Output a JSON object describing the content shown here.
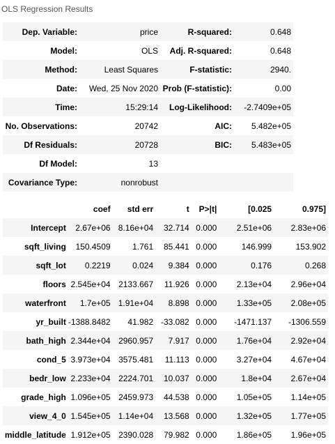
{
  "caption": "OLS Regression Results",
  "summary": [
    [
      "Dep. Variable:",
      "price",
      "R-squared:",
      "0.648"
    ],
    [
      "Model:",
      "OLS",
      "Adj. R-squared:",
      "0.648"
    ],
    [
      "Method:",
      "Least Squares",
      "F-statistic:",
      "2940."
    ],
    [
      "Date:",
      "Wed, 25 Nov 2020",
      "Prob (F-statistic):",
      "0.00"
    ],
    [
      "Time:",
      "15:29:14",
      "Log-Likelihood:",
      "-2.7409e+05"
    ],
    [
      "No. Observations:",
      "20742",
      "AIC:",
      "5.482e+05"
    ],
    [
      "Df Residuals:",
      "20728",
      "BIC:",
      "5.483e+05"
    ],
    [
      "Df Model:",
      "13",
      "",
      ""
    ],
    [
      "Covariance Type:",
      "nonrobust",
      "",
      ""
    ]
  ],
  "coef": {
    "headers": [
      "",
      "coef",
      "std err",
      "t",
      "P>|t|",
      "[0.025",
      "0.975]"
    ],
    "rows": [
      [
        "Intercept",
        "2.67e+06",
        "8.16e+04",
        "32.714",
        "0.000",
        "2.51e+06",
        "2.83e+06"
      ],
      [
        "sqft_living",
        "150.4509",
        "1.761",
        "85.441",
        "0.000",
        "146.999",
        "153.902"
      ],
      [
        "sqft_lot",
        "0.2219",
        "0.024",
        "9.384",
        "0.000",
        "0.176",
        "0.268"
      ],
      [
        "floors",
        "2.545e+04",
        "2133.667",
        "11.926",
        "0.000",
        "2.13e+04",
        "2.96e+04"
      ],
      [
        "waterfront",
        "1.7e+05",
        "1.91e+04",
        "8.898",
        "0.000",
        "1.33e+05",
        "2.08e+05"
      ],
      [
        "yr_built",
        "-1388.8482",
        "41.982",
        "-33.082",
        "0.000",
        "-1471.137",
        "-1306.559"
      ],
      [
        "bath_high",
        "2.344e+04",
        "2960.957",
        "7.917",
        "0.000",
        "1.76e+04",
        "2.92e+04"
      ],
      [
        "cond_5",
        "3.973e+04",
        "3575.481",
        "11.113",
        "0.000",
        "3.27e+04",
        "4.67e+04"
      ],
      [
        "bedr_low",
        "2.233e+04",
        "2224.701",
        "10.037",
        "0.000",
        "1.8e+04",
        "2.67e+04"
      ],
      [
        "grade_high",
        "1.096e+05",
        "2459.973",
        "44.538",
        "0.000",
        "1.05e+05",
        "1.14e+05"
      ],
      [
        "view_4_0",
        "1.545e+05",
        "1.14e+04",
        "13.568",
        "0.000",
        "1.32e+05",
        "1.77e+05"
      ],
      [
        "middle_latitude",
        "1.912e+05",
        "2390.028",
        "79.982",
        "0.000",
        "1.86e+05",
        "1.96e+05"
      ]
    ]
  }
}
